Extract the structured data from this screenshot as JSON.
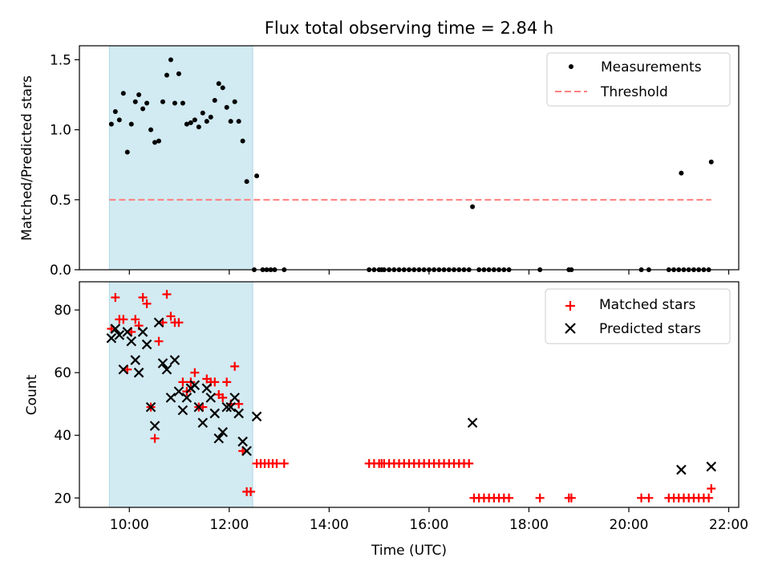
{
  "title": "Flux total observing time = 2.84 h",
  "colors": {
    "measurement": "#000000",
    "threshold": "#ff7f7f",
    "matched": "#ff0000",
    "predicted": "#000000",
    "highlight": "#add8e6"
  },
  "chart_data": [
    {
      "type": "scatter",
      "ylabel": "Matched/Predicted stars",
      "xlabel": "",
      "xlim": [
        9.0,
        22.2
      ],
      "ylim": [
        0.0,
        1.6
      ],
      "yticks": [
        0.0,
        0.5,
        1.0,
        1.5
      ],
      "ytick_labels": [
        "0.0",
        "0.5",
        "1.0",
        "1.5"
      ],
      "grid": false,
      "legend_position": "upper right",
      "highlight_span": [
        9.6,
        12.47
      ],
      "threshold": {
        "name": "Threshold",
        "y": 0.5,
        "x_range": [
          9.6,
          21.65
        ],
        "style": "dashed"
      },
      "series": [
        {
          "name": "Measurements",
          "marker": "dot",
          "points": [
            [
              9.64,
              1.04
            ],
            [
              9.72,
              1.13
            ],
            [
              9.8,
              1.07
            ],
            [
              9.88,
              1.26
            ],
            [
              9.96,
              0.84
            ],
            [
              10.04,
              1.04
            ],
            [
              10.12,
              1.2
            ],
            [
              10.19,
              1.25
            ],
            [
              10.27,
              1.15
            ],
            [
              10.35,
              1.19
            ],
            [
              10.43,
              1.0
            ],
            [
              10.51,
              0.91
            ],
            [
              10.59,
              0.92
            ],
            [
              10.67,
              1.2
            ],
            [
              10.75,
              1.39
            ],
            [
              10.83,
              1.5
            ],
            [
              10.91,
              1.19
            ],
            [
              10.99,
              1.4
            ],
            [
              11.07,
              1.19
            ],
            [
              11.15,
              1.04
            ],
            [
              11.23,
              1.05
            ],
            [
              11.31,
              1.07
            ],
            [
              11.39,
              1.02
            ],
            [
              11.47,
              1.12
            ],
            [
              11.55,
              1.06
            ],
            [
              11.63,
              1.09
            ],
            [
              11.71,
              1.21
            ],
            [
              11.79,
              1.33
            ],
            [
              11.87,
              1.3
            ],
            [
              11.95,
              1.16
            ],
            [
              12.03,
              1.06
            ],
            [
              12.11,
              1.2
            ],
            [
              12.19,
              1.06
            ],
            [
              12.27,
              0.92
            ],
            [
              12.35,
              0.63
            ],
            [
              12.55,
              0.67
            ],
            [
              16.87,
              0.45
            ],
            [
              21.05,
              0.69
            ],
            [
              21.65,
              0.77
            ],
            [
              12.5,
              0.0
            ],
            [
              12.67,
              0.0
            ],
            [
              12.75,
              0.0
            ],
            [
              12.83,
              0.0
            ],
            [
              12.91,
              0.0
            ],
            [
              13.1,
              0.0
            ],
            [
              14.8,
              0.0
            ],
            [
              14.9,
              0.0
            ],
            [
              15.0,
              0.0
            ],
            [
              15.05,
              0.0
            ],
            [
              15.1,
              0.0
            ],
            [
              15.2,
              0.0
            ],
            [
              15.3,
              0.0
            ],
            [
              15.4,
              0.0
            ],
            [
              15.5,
              0.0
            ],
            [
              15.6,
              0.0
            ],
            [
              15.7,
              0.0
            ],
            [
              15.8,
              0.0
            ],
            [
              15.9,
              0.0
            ],
            [
              16.0,
              0.0
            ],
            [
              16.1,
              0.0
            ],
            [
              16.2,
              0.0
            ],
            [
              16.3,
              0.0
            ],
            [
              16.4,
              0.0
            ],
            [
              16.5,
              0.0
            ],
            [
              16.6,
              0.0
            ],
            [
              16.7,
              0.0
            ],
            [
              16.8,
              0.0
            ],
            [
              17.0,
              0.0
            ],
            [
              17.1,
              0.0
            ],
            [
              17.2,
              0.0
            ],
            [
              17.3,
              0.0
            ],
            [
              17.4,
              0.0
            ],
            [
              17.5,
              0.0
            ],
            [
              17.6,
              0.0
            ],
            [
              18.22,
              0.0
            ],
            [
              18.8,
              0.0
            ],
            [
              18.85,
              0.0
            ],
            [
              20.25,
              0.0
            ],
            [
              20.4,
              0.0
            ],
            [
              20.8,
              0.0
            ],
            [
              20.9,
              0.0
            ],
            [
              21.0,
              0.0
            ],
            [
              21.1,
              0.0
            ],
            [
              21.2,
              0.0
            ],
            [
              21.3,
              0.0
            ],
            [
              21.4,
              0.0
            ],
            [
              21.5,
              0.0
            ],
            [
              21.6,
              0.0
            ]
          ]
        }
      ]
    },
    {
      "type": "scatter",
      "ylabel": "Count",
      "xlabel": "Time (UTC)",
      "xlim": [
        9.0,
        22.2
      ],
      "ylim": [
        17,
        89
      ],
      "xticks": [
        10,
        12,
        14,
        16,
        18,
        20,
        22
      ],
      "xtick_labels": [
        "10:00",
        "12:00",
        "14:00",
        "16:00",
        "18:00",
        "20:00",
        "22:00"
      ],
      "yticks": [
        20,
        40,
        60,
        80
      ],
      "ytick_labels": [
        "20",
        "40",
        "60",
        "80"
      ],
      "grid": false,
      "legend_position": "upper right",
      "highlight_span": [
        9.6,
        12.47
      ],
      "series": [
        {
          "name": "Matched stars",
          "marker": "plus",
          "points": [
            [
              9.64,
              74
            ],
            [
              9.72,
              84
            ],
            [
              9.8,
              77
            ],
            [
              9.88,
              77
            ],
            [
              9.96,
              61
            ],
            [
              10.04,
              73
            ],
            [
              10.12,
              77
            ],
            [
              10.19,
              75
            ],
            [
              10.27,
              84
            ],
            [
              10.35,
              82
            ],
            [
              10.43,
              49
            ],
            [
              10.51,
              39
            ],
            [
              10.59,
              70
            ],
            [
              10.67,
              76
            ],
            [
              10.75,
              85
            ],
            [
              10.83,
              78
            ],
            [
              10.91,
              76
            ],
            [
              10.99,
              76
            ],
            [
              11.07,
              57
            ],
            [
              11.15,
              54
            ],
            [
              11.23,
              57
            ],
            [
              11.31,
              60
            ],
            [
              11.39,
              49
            ],
            [
              11.47,
              49
            ],
            [
              11.55,
              58
            ],
            [
              11.63,
              57
            ],
            [
              11.71,
              57
            ],
            [
              11.79,
              53
            ],
            [
              11.87,
              52
            ],
            [
              11.95,
              57
            ],
            [
              12.03,
              50
            ],
            [
              12.11,
              62
            ],
            [
              12.19,
              50
            ],
            [
              12.27,
              35
            ],
            [
              12.35,
              22
            ],
            [
              12.43,
              22
            ],
            [
              12.55,
              31
            ],
            [
              12.63,
              31
            ],
            [
              12.71,
              31
            ],
            [
              12.79,
              31
            ],
            [
              12.87,
              31
            ],
            [
              12.95,
              31
            ],
            [
              13.1,
              31
            ],
            [
              14.8,
              31
            ],
            [
              14.9,
              31
            ],
            [
              15.0,
              31
            ],
            [
              15.05,
              31
            ],
            [
              15.1,
              31
            ],
            [
              15.2,
              31
            ],
            [
              15.3,
              31
            ],
            [
              15.4,
              31
            ],
            [
              15.5,
              31
            ],
            [
              15.6,
              31
            ],
            [
              15.7,
              31
            ],
            [
              15.8,
              31
            ],
            [
              15.9,
              31
            ],
            [
              16.0,
              31
            ],
            [
              16.1,
              31
            ],
            [
              16.2,
              31
            ],
            [
              16.3,
              31
            ],
            [
              16.4,
              31
            ],
            [
              16.5,
              31
            ],
            [
              16.6,
              31
            ],
            [
              16.7,
              31
            ],
            [
              16.8,
              31
            ],
            [
              16.9,
              20
            ],
            [
              17.0,
              20
            ],
            [
              17.1,
              20
            ],
            [
              17.2,
              20
            ],
            [
              17.3,
              20
            ],
            [
              17.4,
              20
            ],
            [
              17.5,
              20
            ],
            [
              17.6,
              20
            ],
            [
              18.22,
              20
            ],
            [
              18.8,
              20
            ],
            [
              18.85,
              20
            ],
            [
              20.25,
              20
            ],
            [
              20.4,
              20
            ],
            [
              20.8,
              20
            ],
            [
              20.9,
              20
            ],
            [
              21.0,
              20
            ],
            [
              21.1,
              20
            ],
            [
              21.2,
              20
            ],
            [
              21.3,
              20
            ],
            [
              21.4,
              20
            ],
            [
              21.5,
              20
            ],
            [
              21.6,
              20
            ],
            [
              21.65,
              23
            ]
          ]
        },
        {
          "name": "Predicted stars",
          "marker": "x",
          "points": [
            [
              9.64,
              71
            ],
            [
              9.72,
              74
            ],
            [
              9.8,
              72
            ],
            [
              9.88,
              61
            ],
            [
              9.96,
              73
            ],
            [
              10.04,
              70
            ],
            [
              10.12,
              64
            ],
            [
              10.19,
              60
            ],
            [
              10.27,
              73
            ],
            [
              10.35,
              69
            ],
            [
              10.43,
              49
            ],
            [
              10.51,
              43
            ],
            [
              10.59,
              76
            ],
            [
              10.67,
              63
            ],
            [
              10.75,
              61
            ],
            [
              10.83,
              52
            ],
            [
              10.91,
              64
            ],
            [
              10.99,
              54
            ],
            [
              11.07,
              48
            ],
            [
              11.15,
              52
            ],
            [
              11.23,
              55
            ],
            [
              11.31,
              56
            ],
            [
              11.39,
              49
            ],
            [
              11.47,
              44
            ],
            [
              11.55,
              55
            ],
            [
              11.63,
              52
            ],
            [
              11.71,
              47
            ],
            [
              11.79,
              39
            ],
            [
              11.87,
              41
            ],
            [
              11.95,
              49
            ],
            [
              12.03,
              49
            ],
            [
              12.11,
              52
            ],
            [
              12.19,
              47
            ],
            [
              12.27,
              38
            ],
            [
              12.35,
              35
            ],
            [
              12.55,
              46
            ],
            [
              16.87,
              44
            ],
            [
              21.05,
              29
            ],
            [
              21.65,
              30
            ]
          ]
        }
      ]
    }
  ]
}
